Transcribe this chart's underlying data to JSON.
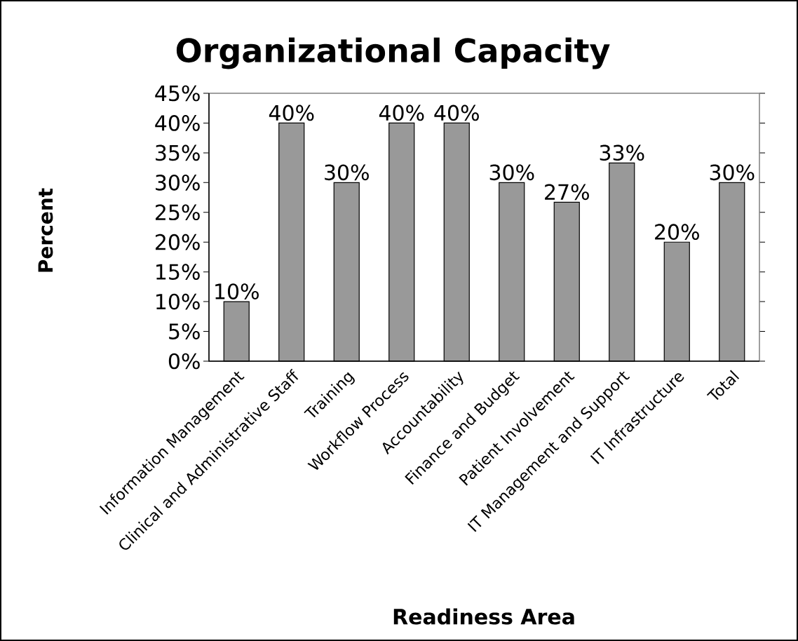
{
  "chart_data": {
    "type": "bar",
    "title": "Organizational Capacity",
    "xlabel": "Readiness Area",
    "ylabel": "Percent",
    "categories": [
      "Information Management",
      "Clinical and Administrative Staff",
      "Training",
      "Workflow Process",
      "Accountability",
      "Finance and Budget",
      "Patient Involvement",
      "IT Management and Support",
      "IT Infrastructure",
      "Total"
    ],
    "values": [
      10,
      40,
      30,
      40,
      40,
      30,
      26.7,
      33.3,
      20,
      30
    ],
    "value_labels": [
      "10%",
      "40%",
      "30%",
      "40%",
      "40%",
      "30%",
      "27%",
      "33%",
      "20%",
      "30%"
    ],
    "color": "#999999",
    "ylim": [
      0,
      45
    ],
    "yticks": [
      {
        "value": 0,
        "label": "0%"
      },
      {
        "value": 5,
        "label": "5%"
      },
      {
        "value": 10,
        "label": "10%"
      },
      {
        "value": 15,
        "label": "15%"
      },
      {
        "value": 20,
        "label": "20%"
      },
      {
        "value": 25,
        "label": "25%"
      },
      {
        "value": 30,
        "label": "30%"
      },
      {
        "value": 35,
        "label": "35%"
      },
      {
        "value": 40,
        "label": "40%"
      },
      {
        "value": 45,
        "label": "45%"
      }
    ]
  }
}
